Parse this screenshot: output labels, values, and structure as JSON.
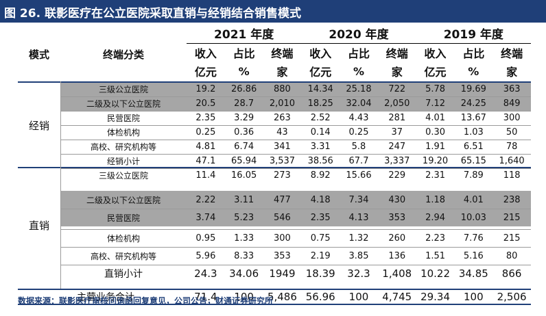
{
  "title": "图 26. 联影医疗在公立医院采取直销与经销结合销售模式",
  "header": {
    "mode": "模式",
    "category": "终端分类",
    "years": [
      "2021 年度",
      "2020 年度",
      "2019 年度"
    ],
    "col_line1": [
      "收入",
      "占比",
      "终端"
    ],
    "col_line2": [
      "亿元",
      "%",
      "家"
    ]
  },
  "groups": [
    {
      "mode": "经销",
      "rows": [
        {
          "category": "三级公立医院",
          "values": [
            "19.2",
            "26.86",
            "880",
            "14.34",
            "25.18",
            "722",
            "5.78",
            "19.69",
            "363"
          ]
        },
        {
          "category": "二级及以下公立医院",
          "values": [
            "20.5",
            "28.7",
            "2,010",
            "18.25",
            "32.04",
            "2,050",
            "7.12",
            "24.25",
            "849"
          ]
        },
        {
          "category": "民营医院",
          "values": [
            "2.35",
            "3.29",
            "263",
            "2.52",
            "4.43",
            "281",
            "4.01",
            "13.67",
            "300"
          ]
        },
        {
          "category": "体检机构",
          "values": [
            "0.25",
            "0.36",
            "43",
            "0.14",
            "0.25",
            "37",
            "0.30",
            "1.03",
            "50"
          ]
        },
        {
          "category": "高校、研究机构等",
          "values": [
            "4.81",
            "6.74",
            "341",
            "3.31",
            "5.8",
            "247",
            "1.91",
            "6.51",
            "78"
          ]
        },
        {
          "category": "经销小计",
          "values": [
            "47.1",
            "65.94",
            "3,537",
            "38.56",
            "67.7",
            "3,337",
            "19.20",
            "65.15",
            "1,640"
          ]
        }
      ]
    },
    {
      "mode": "直销",
      "rows": [
        {
          "category": "三级公立医院",
          "values": [
            "11.4",
            "16.05",
            "273",
            "8.92",
            "15.66",
            "229",
            "2.31",
            "7.89",
            "118"
          ]
        },
        {
          "category": "二级及以下公立医院",
          "values": [
            "2.22",
            "3.11",
            "477",
            "4.18",
            "7.34",
            "430",
            "1.18",
            "4.01",
            "238"
          ]
        },
        {
          "category": "民营医院",
          "values": [
            "3.74",
            "5.23",
            "546",
            "2.35",
            "4.13",
            "353",
            "2.94",
            "10.03",
            "215"
          ]
        },
        {
          "category": "体检机构",
          "values": [
            "0.95",
            "1.33",
            "300",
            "0.75",
            "1.32",
            "260",
            "2.23",
            "7.76",
            "215"
          ]
        },
        {
          "category": "高校、研究机构等",
          "values": [
            "5.96",
            "8.33",
            "353",
            "2.19",
            "3.85",
            "136",
            "1.51",
            "5.16",
            "80"
          ]
        },
        {
          "category": "直销小计",
          "values": [
            "24.3",
            "34.06",
            "1949",
            "18.39",
            "32.3",
            "1,408",
            "10.22",
            "34.85",
            "866"
          ]
        }
      ]
    }
  ],
  "total": {
    "category": "主营业务合计",
    "values": [
      "71.4",
      "100",
      "5,486",
      "56.96",
      "100",
      "4,745",
      "29.34",
      "100",
      "2,506"
    ]
  },
  "source": "数据来源：联影医疗审核问询函回复意见，公司公告，财通证券研究所",
  "colors": {
    "title_bg": "#1f3f78",
    "band": "#a6a6a6",
    "accent_line": "#1f3f78"
  }
}
